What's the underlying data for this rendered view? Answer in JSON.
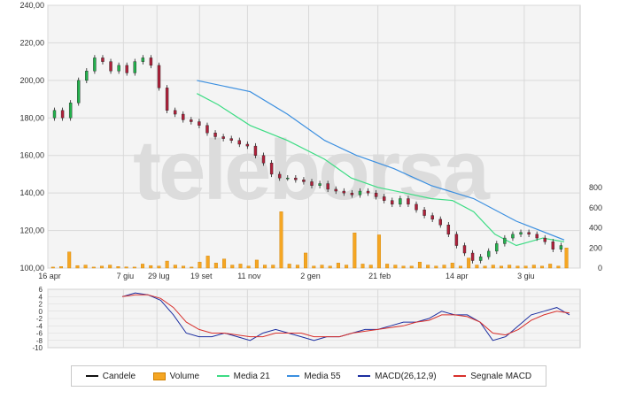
{
  "chart_data": [
    {
      "type": "candlestick",
      "title": "",
      "xlabel": "",
      "ylabel": "",
      "watermark": "teleborsa",
      "x_ticks": [
        "16 apr",
        "7 giu",
        "29 lug",
        "19 set",
        "11 nov",
        "2 gen",
        "21 feb",
        "14 apr",
        "3 giu"
      ],
      "y_ticks": [
        "100,00",
        "120,00",
        "140,00",
        "160,00",
        "180,00",
        "200,00",
        "220,00",
        "240,00"
      ],
      "ylim": [
        100,
        240
      ],
      "volume_ticks": [
        "0",
        "200",
        "400",
        "600",
        "800"
      ],
      "volume_ylim": [
        0,
        800
      ],
      "grid": true,
      "colors": {
        "up": "#22b14c",
        "down": "#b0203a",
        "volume": "#f5a623",
        "media21": "#3ddc84",
        "media55": "#3b8fe0",
        "grid": "#d9d9d9",
        "background": "#f4f4f4"
      },
      "close_series": [
        184,
        180,
        188,
        200,
        205,
        212,
        210,
        205,
        208,
        204,
        210,
        212,
        208,
        196,
        184,
        182,
        179,
        178,
        176,
        172,
        170,
        169,
        168,
        166,
        165,
        160,
        156,
        150,
        148,
        148,
        147,
        146,
        144,
        145,
        142,
        141,
        140,
        139,
        141,
        140,
        138,
        136,
        134,
        137,
        134,
        131,
        128,
        126,
        123,
        118,
        112,
        108,
        104,
        106,
        109,
        113,
        116,
        118,
        119,
        118,
        116,
        114,
        110,
        112
      ],
      "volume_series": [
        10,
        15,
        160,
        25,
        30,
        10,
        20,
        30,
        15,
        12,
        10,
        40,
        25,
        20,
        70,
        30,
        20,
        10,
        60,
        120,
        50,
        90,
        30,
        40,
        20,
        80,
        30,
        30,
        560,
        40,
        30,
        150,
        20,
        30,
        20,
        50,
        30,
        350,
        40,
        30,
        330,
        40,
        30,
        20,
        20,
        60,
        30,
        20,
        30,
        50,
        20,
        100,
        30,
        20,
        30,
        20,
        30,
        20,
        20,
        30,
        20,
        40,
        20,
        200
      ],
      "media21": [
        [
          0.28,
          193
        ],
        [
          0.32,
          187
        ],
        [
          0.38,
          176
        ],
        [
          0.45,
          168
        ],
        [
          0.52,
          158
        ],
        [
          0.57,
          148
        ],
        [
          0.62,
          143
        ],
        [
          0.67,
          140
        ],
        [
          0.72,
          137
        ],
        [
          0.76,
          136
        ],
        [
          0.8,
          130
        ],
        [
          0.84,
          118
        ],
        [
          0.88,
          112
        ],
        [
          0.93,
          116
        ],
        [
          0.97,
          114
        ]
      ],
      "media55": [
        [
          0.28,
          200
        ],
        [
          0.38,
          194
        ],
        [
          0.45,
          182
        ],
        [
          0.52,
          168
        ],
        [
          0.58,
          160
        ],
        [
          0.65,
          153
        ],
        [
          0.72,
          144
        ],
        [
          0.8,
          137
        ],
        [
          0.88,
          125
        ],
        [
          0.97,
          115
        ]
      ]
    },
    {
      "type": "line",
      "title": "",
      "y_ticks": [
        "6",
        "4",
        "2",
        "0",
        "-2",
        "-4",
        "-6",
        "-8",
        "-10"
      ],
      "ylim": [
        -10,
        6
      ],
      "series": [
        {
          "name": "MACD(26,12,9)",
          "color": "#1c2ea0",
          "values": [
            4,
            5,
            4.5,
            3,
            -1,
            -6,
            -7,
            -7,
            -6,
            -7,
            -8,
            -6,
            -5,
            -6,
            -7,
            -8,
            -7,
            -7,
            -6,
            -5,
            -5,
            -4,
            -3,
            -3,
            -2,
            0,
            -1,
            -1,
            -3,
            -8,
            -7,
            -4,
            -1,
            0,
            1,
            -1
          ]
        },
        {
          "name": "Segnale MACD",
          "color": "#d8302c",
          "values": [
            4,
            4.5,
            4.5,
            3.5,
            1,
            -3,
            -5,
            -6,
            -6,
            -6.5,
            -7,
            -7,
            -6,
            -6,
            -6,
            -7,
            -7,
            -7,
            -6,
            -5.5,
            -5,
            -4.5,
            -4,
            -3,
            -2.5,
            -1,
            -1,
            -1.5,
            -3,
            -6,
            -6.5,
            -5,
            -2.5,
            -1,
            0,
            -0.5
          ]
        }
      ]
    }
  ],
  "legend": [
    {
      "label": "Candele",
      "kind": "line",
      "color": "#111111"
    },
    {
      "label": "Volume",
      "kind": "box",
      "color": "#f5a623"
    },
    {
      "label": "Media 21",
      "kind": "line",
      "color": "#3ddc84"
    },
    {
      "label": "Media 55",
      "kind": "line",
      "color": "#3b8fe0"
    },
    {
      "label": "MACD(26,12,9)",
      "kind": "line",
      "color": "#1c2ea0"
    },
    {
      "label": "Segnale MACD",
      "kind": "line",
      "color": "#d8302c"
    }
  ]
}
